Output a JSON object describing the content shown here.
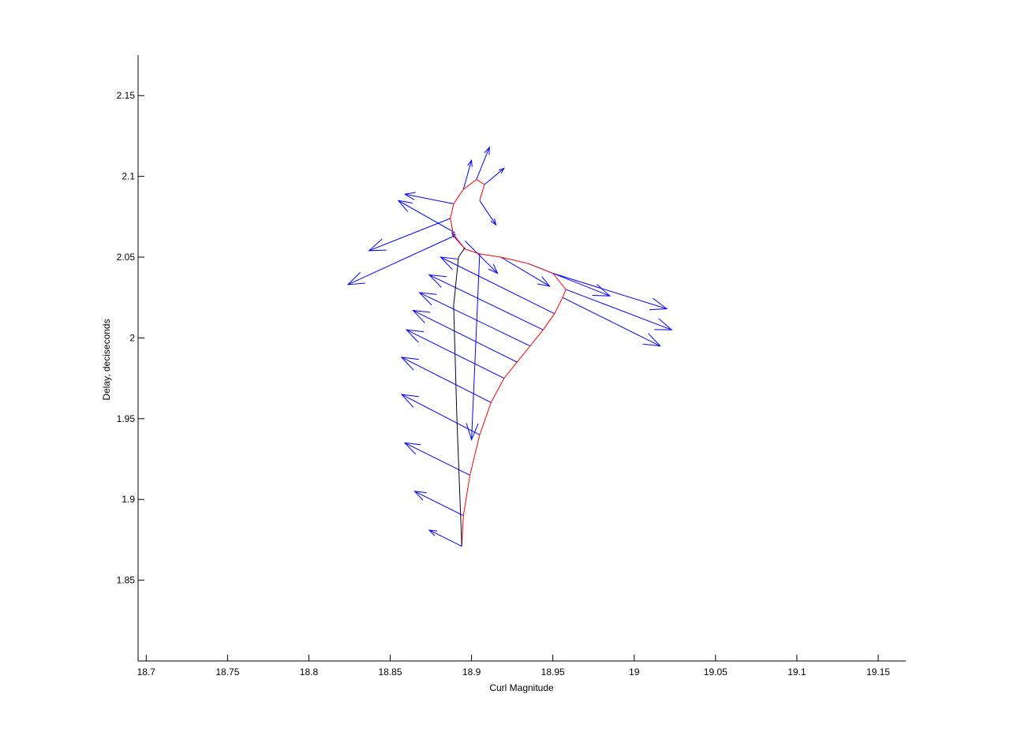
{
  "chart_data": {
    "type": "quiver",
    "title": "",
    "xlabel": "Curl Magnitude",
    "ylabel": "Delay, deciseconds",
    "xlim": [
      18.695,
      19.167
    ],
    "ylim": [
      1.8,
      2.175
    ],
    "xticks": [
      18.7,
      18.75,
      18.8,
      18.85,
      18.9,
      18.95,
      19,
      19.05,
      19.1,
      19.15
    ],
    "xtick_labels": [
      "18.7",
      "18.75",
      "18.8",
      "18.85",
      "18.9",
      "18.95",
      "19",
      "19.05",
      "19.1",
      "19.15"
    ],
    "yticks": [
      1.85,
      1.9,
      1.95,
      2,
      2.05,
      2.1,
      2.15
    ],
    "ytick_labels": [
      "1.85",
      "1.9",
      "1.95",
      "2",
      "2.05",
      "2.1",
      "2.15"
    ],
    "grid": false,
    "box": false,
    "trajectory": {
      "color": "#ff0000",
      "x": [
        18.894,
        18.895,
        18.899,
        18.905,
        18.912,
        18.92,
        18.928,
        18.936,
        18.944,
        18.951,
        18.956,
        18.958,
        18.95,
        18.935,
        18.918,
        18.905,
        18.896,
        18.889,
        18.887,
        18.889,
        18.895,
        18.903,
        18.908,
        18.905
      ],
      "y": [
        1.871,
        1.89,
        1.915,
        1.94,
        1.96,
        1.975,
        1.985,
        1.995,
        2.005,
        2.015,
        2.025,
        2.03,
        2.04,
        2.046,
        2.05,
        2.052,
        2.055,
        2.063,
        2.074,
        2.083,
        2.092,
        2.098,
        2.095,
        2.085
      ]
    },
    "arrows": {
      "color": "#0000ff",
      "x": [
        18.894,
        18.895,
        18.899,
        18.905,
        18.912,
        18.92,
        18.928,
        18.936,
        18.944,
        18.951,
        18.956,
        18.958,
        18.95,
        18.935,
        18.918,
        18.905,
        18.896,
        18.889,
        18.887,
        18.889,
        18.895,
        18.903,
        18.908,
        18.905,
        18.896,
        18.89
      ],
      "y": [
        1.871,
        1.89,
        1.915,
        1.94,
        1.96,
        1.975,
        1.985,
        1.995,
        2.005,
        2.015,
        2.025,
        2.03,
        2.04,
        2.046,
        2.05,
        2.052,
        2.055,
        2.063,
        2.074,
        2.083,
        2.092,
        2.098,
        2.095,
        2.085,
        2.06,
        2.065
      ],
      "u": [
        -0.02,
        -0.03,
        -0.04,
        -0.048,
        -0.055,
        -0.06,
        -0.064,
        -0.068,
        -0.07,
        -0.07,
        0.06,
        0.065,
        0.07,
        0.05,
        0.03,
        -0.005,
        -0.008,
        -0.065,
        -0.05,
        -0.03,
        0.005,
        0.008,
        0.012,
        0.01,
        0.02,
        -0.035
      ],
      "v": [
        0.01,
        0.015,
        0.02,
        0.025,
        0.028,
        0.03,
        0.032,
        0.033,
        0.034,
        0.035,
        -0.03,
        -0.025,
        -0.022,
        -0.02,
        -0.018,
        -0.115,
        0.01,
        -0.03,
        -0.02,
        0.006,
        0.018,
        0.02,
        0.01,
        -0.015,
        -0.02,
        0.02
      ]
    },
    "black_path": {
      "color": "#000033",
      "x": [
        18.894,
        18.891,
        18.889,
        18.892,
        18.896
      ],
      "y": [
        1.871,
        1.95,
        2.02,
        2.05,
        2.056
      ]
    }
  }
}
